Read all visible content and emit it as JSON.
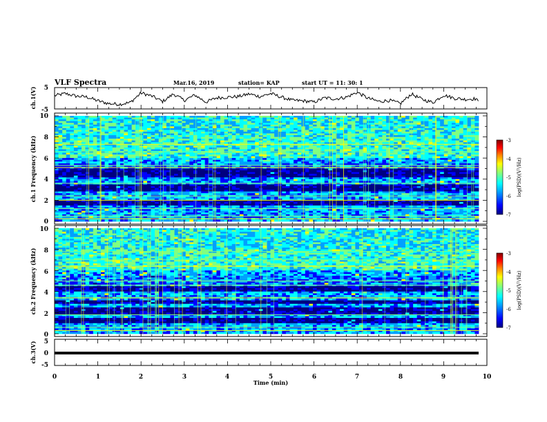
{
  "header": {
    "title": "VLF Spectra",
    "date": "Mar.16, 2019",
    "station": "station= KAP",
    "start": "start  UT =   11: 30: 1"
  },
  "colors": {
    "spectrogram_colormap": [
      "#000080",
      "#0000ff",
      "#00a0ff",
      "#00ffff",
      "#80ff80",
      "#ffff00",
      "#ff8000",
      "#ff0000",
      "#800000"
    ],
    "waveform_line": "#000000"
  },
  "chart_data": [
    {
      "type": "line",
      "panel": "ch1-waveform",
      "ylabel": "ch.1(V)",
      "ylim": [
        -5,
        5
      ],
      "yticks": [
        "5",
        "-5"
      ],
      "xlim": [
        0,
        10
      ],
      "series": [
        {
          "x": [
            0,
            0.25,
            0.5,
            0.75,
            1.0,
            1.25,
            1.5,
            1.75,
            2.0,
            2.25,
            2.5,
            2.75,
            3.0,
            3.25,
            3.5,
            3.75,
            4.0,
            4.25,
            4.5,
            4.75,
            5.0,
            5.25,
            5.5,
            5.75,
            6.0,
            6.25,
            6.5,
            6.75,
            7.0,
            7.25,
            7.5,
            7.75,
            8.0,
            8.25,
            8.5,
            8.75,
            9.0,
            9.25,
            9.5,
            9.75,
            9.8
          ],
          "values": [
            1.2,
            2.2,
            1.0,
            0.6,
            -1.2,
            -2.5,
            -2.8,
            -2.0,
            2.5,
            1.0,
            -1.5,
            2.0,
            -1.0,
            1.5,
            -1.8,
            0.2,
            0.5,
            0.8,
            2.0,
            0.8,
            2.2,
            0.5,
            -1.0,
            -1.2,
            -1.8,
            0.2,
            -0.3,
            0.5,
            2.8,
            0.0,
            -1.5,
            -1.0,
            -2.5,
            2.0,
            -0.5,
            -2.0,
            1.5,
            0.0,
            -0.5,
            -0.2,
            -1.8
          ]
        }
      ]
    },
    {
      "type": "heatmap",
      "panel": "ch1-spectrogram",
      "ylabel": "ch.1 Frequency (kHz)",
      "ylim": [
        0,
        10
      ],
      "yticks": [
        "0",
        "2",
        "4",
        "6",
        "8",
        "10"
      ],
      "xlim": [
        0,
        10
      ],
      "colorbar": {
        "label": "log(PSD)(V²/Hz)",
        "range": [
          -7,
          -3
        ],
        "ticks": [
          "-3",
          "-4",
          "-5",
          "-6",
          "-7"
        ]
      },
      "intense_bands_khz": [
        3.0,
        3.3,
        4.4,
        4.8,
        1.7
      ],
      "narrowband_lines_khz": [
        0.25,
        0.5,
        1.2,
        2.0,
        2.4,
        3.6,
        5.1,
        5.3,
        6.6,
        7.3
      ]
    },
    {
      "type": "heatmap",
      "panel": "ch2-spectrogram",
      "ylabel": "ch.2 Frequency (kHz)",
      "ylim": [
        0,
        10
      ],
      "yticks": [
        "0",
        "2",
        "4",
        "6",
        "8",
        "10"
      ],
      "xlim": [
        0,
        10
      ],
      "colorbar": {
        "label": "log(PSD)(V²/Hz)",
        "range": [
          -7,
          -3
        ],
        "ticks": [
          "-3",
          "-4",
          "-5",
          "-6",
          "-7"
        ]
      },
      "intense_bands_khz": [
        2.3,
        2.0,
        1.3,
        3.0,
        4.2
      ],
      "narrowband_lines_khz": [
        0.3,
        0.6,
        1.8,
        3.4,
        4.6,
        5.0,
        6.4,
        7.0,
        7.8
      ]
    },
    {
      "type": "line",
      "panel": "ch3-waveform",
      "ylabel": "ch.3(V)",
      "ylim": [
        -5,
        5
      ],
      "yticks": [
        "5",
        "0",
        "-5"
      ],
      "xlim": [
        0,
        10
      ],
      "xlabel": "Time  (min)",
      "xticks": [
        "0",
        "1",
        "2",
        "3",
        "4",
        "5",
        "6",
        "7",
        "8",
        "9",
        "10"
      ],
      "series": [
        {
          "x": [
            0,
            9.8
          ],
          "values": [
            0,
            0
          ]
        }
      ]
    }
  ]
}
